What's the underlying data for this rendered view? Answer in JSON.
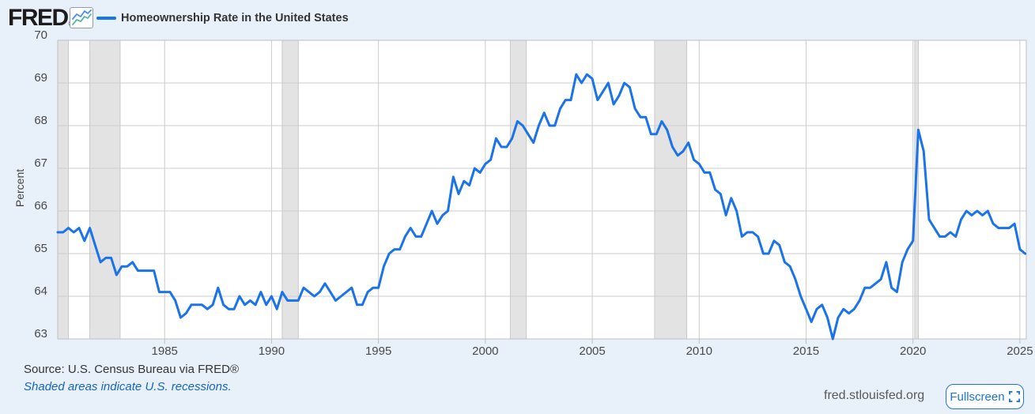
{
  "header": {
    "brand": "FRED",
    "brand_registered": "®",
    "legend_label": "Homeownership Rate in the United States"
  },
  "footer": {
    "source": "Source: U.S. Census Bureau via FRED®",
    "recession_note": "Shaded areas indicate U.S. recessions.",
    "site": "fred.stlouisfed.org",
    "fullscreen_label": "Fullscreen"
  },
  "colors": {
    "background": "#e8f1fa",
    "plot_bg": "#ffffff",
    "line": "#1a73e8",
    "grid": "#cccccc",
    "plot_border": "#bfbfbf",
    "recession_fill": "#e3e3e3",
    "recession_edge": "#c9c9c9",
    "tick": "#bfbfbf",
    "axis_text": "#494949",
    "link_blue": "#1664c0",
    "icon_line_blue": "#4b8df8",
    "icon_line_teal": "#54b5a6"
  },
  "chart_data": {
    "type": "line",
    "title": "Homeownership Rate in the United States",
    "ylabel": "Percent",
    "frequency": "quarterly",
    "x_start": 1980.0,
    "x_step": 0.25,
    "values": [
      65.5,
      65.5,
      65.6,
      65.5,
      65.6,
      65.3,
      65.6,
      65.2,
      64.8,
      64.9,
      64.9,
      64.5,
      64.7,
      64.7,
      64.8,
      64.6,
      64.6,
      64.6,
      64.6,
      64.1,
      64.1,
      64.1,
      63.9,
      63.5,
      63.6,
      63.8,
      63.8,
      63.8,
      63.7,
      63.8,
      64.2,
      63.8,
      63.7,
      63.7,
      64.0,
      63.8,
      63.9,
      63.8,
      64.1,
      63.8,
      64.0,
      63.7,
      64.1,
      63.9,
      63.9,
      63.9,
      64.2,
      64.1,
      64.0,
      64.1,
      64.3,
      64.1,
      63.9,
      64.0,
      64.1,
      64.2,
      63.8,
      63.8,
      64.1,
      64.2,
      64.2,
      64.7,
      65.0,
      65.1,
      65.1,
      65.4,
      65.6,
      65.4,
      65.4,
      65.7,
      66.0,
      65.7,
      65.9,
      66.0,
      66.8,
      66.4,
      66.7,
      66.6,
      67.0,
      66.9,
      67.1,
      67.2,
      67.7,
      67.5,
      67.5,
      67.7,
      68.1,
      68.0,
      67.8,
      67.6,
      68.0,
      68.3,
      68.0,
      68.0,
      68.4,
      68.6,
      68.6,
      69.2,
      69.0,
      69.2,
      69.1,
      68.6,
      68.8,
      69.0,
      68.5,
      68.7,
      69.0,
      68.9,
      68.4,
      68.2,
      68.2,
      67.8,
      67.8,
      68.1,
      67.9,
      67.5,
      67.3,
      67.4,
      67.6,
      67.2,
      67.1,
      66.9,
      66.9,
      66.5,
      66.4,
      65.9,
      66.3,
      66.0,
      65.4,
      65.5,
      65.5,
      65.4,
      65.0,
      65.0,
      65.3,
      65.2,
      64.8,
      64.7,
      64.4,
      64.0,
      63.7,
      63.4,
      63.7,
      63.8,
      63.5,
      63.0,
      63.5,
      63.7,
      63.6,
      63.7,
      63.9,
      64.2,
      64.2,
      64.3,
      64.4,
      64.8,
      64.2,
      64.1,
      64.8,
      65.1,
      65.3,
      67.9,
      67.4,
      65.8,
      65.6,
      65.4,
      65.4,
      65.5,
      65.4,
      65.8,
      66.0,
      65.9,
      66.0,
      65.9,
      66.0,
      65.7,
      65.6,
      65.6,
      65.6,
      65.7,
      65.1,
      65.0
    ],
    "x_ticks": [
      1985,
      1990,
      1995,
      2000,
      2005,
      2010,
      2015,
      2020,
      2025
    ],
    "x_tick_labels": [
      "1985",
      "1990",
      "1995",
      "2000",
      "2005",
      "2010",
      "2015",
      "2020",
      "2025"
    ],
    "y_ticks": [
      63,
      64,
      65,
      66,
      67,
      68,
      69,
      70
    ],
    "y_tick_labels": [
      "63",
      "64",
      "65",
      "66",
      "67",
      "68",
      "69",
      "70"
    ],
    "ylim": [
      63,
      70
    ],
    "xlim": [
      1980.0,
      2025.3
    ],
    "grid": true,
    "legend_position": "top-left",
    "recessions": [
      [
        1980.0,
        1980.5
      ],
      [
        1981.5,
        1982.917
      ],
      [
        1990.5,
        1991.25
      ],
      [
        2001.167,
        2001.917
      ],
      [
        2007.917,
        2009.417
      ],
      [
        2020.083,
        2020.25
      ]
    ]
  }
}
